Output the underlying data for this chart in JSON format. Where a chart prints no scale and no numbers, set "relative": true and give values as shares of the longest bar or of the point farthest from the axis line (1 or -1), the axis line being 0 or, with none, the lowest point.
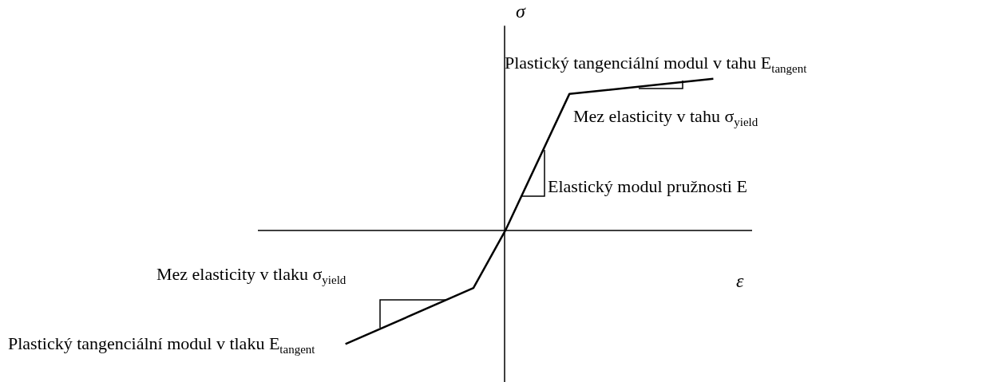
{
  "chart_data": {
    "type": "line",
    "relative": true,
    "xlabel": "ε",
    "ylabel": "σ",
    "categories": [
      null,
      null,
      null,
      null,
      null,
      null,
      null,
      null,
      null,
      null,
      null,
      null,
      null,
      null,
      null,
      null,
      null,
      null,
      null,
      null,
      null,
      null,
      null,
      null
    ],
    "series": [
      {
        "color": "#000000",
        "values": [
          -0.75,
          null,
          null,
          null,
          null,
          null,
          null,
          null,
          -0.38,
          null,
          0,
          null,
          null,
          null,
          0.9,
          null,
          null,
          null,
          null,
          null,
          null,
          null,
          null,
          1
        ]
      }
    ],
    "marker": "none",
    "line_style": "solid",
    "grid": false,
    "legend": false,
    "annotations": [
      "Plastický tangenciální modul v tahu E$_{tangent}$",
      "Mez elasticity v tahu σ$_{yield}$",
      "Elastický modul pružnosti E",
      "Mez elasticity v tlaku σ$_{yield}$",
      "Plastický tangenciální modul v tlaku E$_{tangent}$"
    ]
  }
}
